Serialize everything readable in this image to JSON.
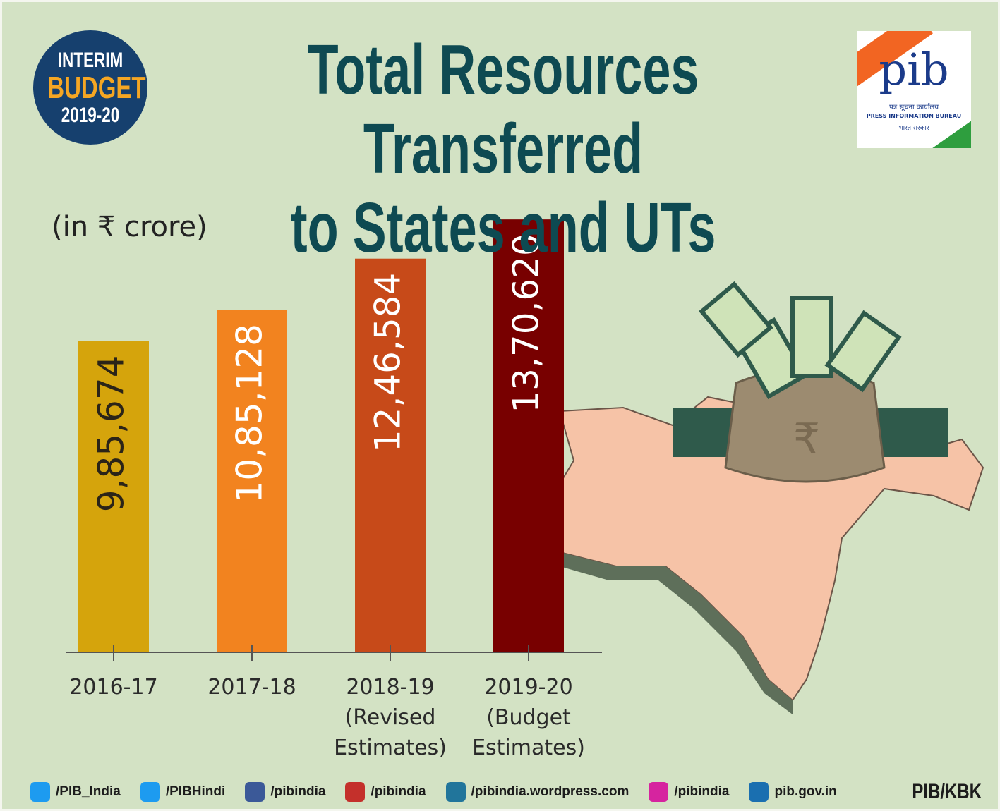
{
  "chart_data": {
    "type": "bar",
    "title": "Total Resources Transferred\nto States and UTs",
    "subtitle": "(in ₹ crore)",
    "categories": [
      "2016-17",
      "2017-18",
      "2018-19\n(Revised\nEstimates)",
      "2019-20\n(Budget\nEstimates)"
    ],
    "values": [
      985674,
      1085128,
      1246584,
      1370620
    ],
    "value_labels": [
      "9,85,674",
      "10,85,128",
      "12,46,584",
      "13,70,620"
    ],
    "colors": [
      "#d5a40c",
      "#f2831f",
      "#c74a19",
      "#780000"
    ],
    "label_colors": [
      "#2b2418",
      "#ffffff",
      "#ffffff",
      "#ffffff"
    ],
    "ylim": [
      0,
      1400000
    ]
  },
  "badge": {
    "line1": "INTERIM",
    "line2": "BUDGET",
    "line3": "2019-20"
  },
  "logo": {
    "mark": "pib",
    "hindi": "पत्र सूचना कार्यालय",
    "english": "PRESS INFORMATION BUREAU",
    "govt": "भारत सरकार"
  },
  "footer": {
    "handles": [
      "/PIB_India",
      "/PIBHindi",
      "/pibindia",
      "/pibindia",
      "/pibindia.wordpress.com",
      "/pibindia",
      "pib.gov.in"
    ],
    "credit": "PIB/KBK"
  }
}
